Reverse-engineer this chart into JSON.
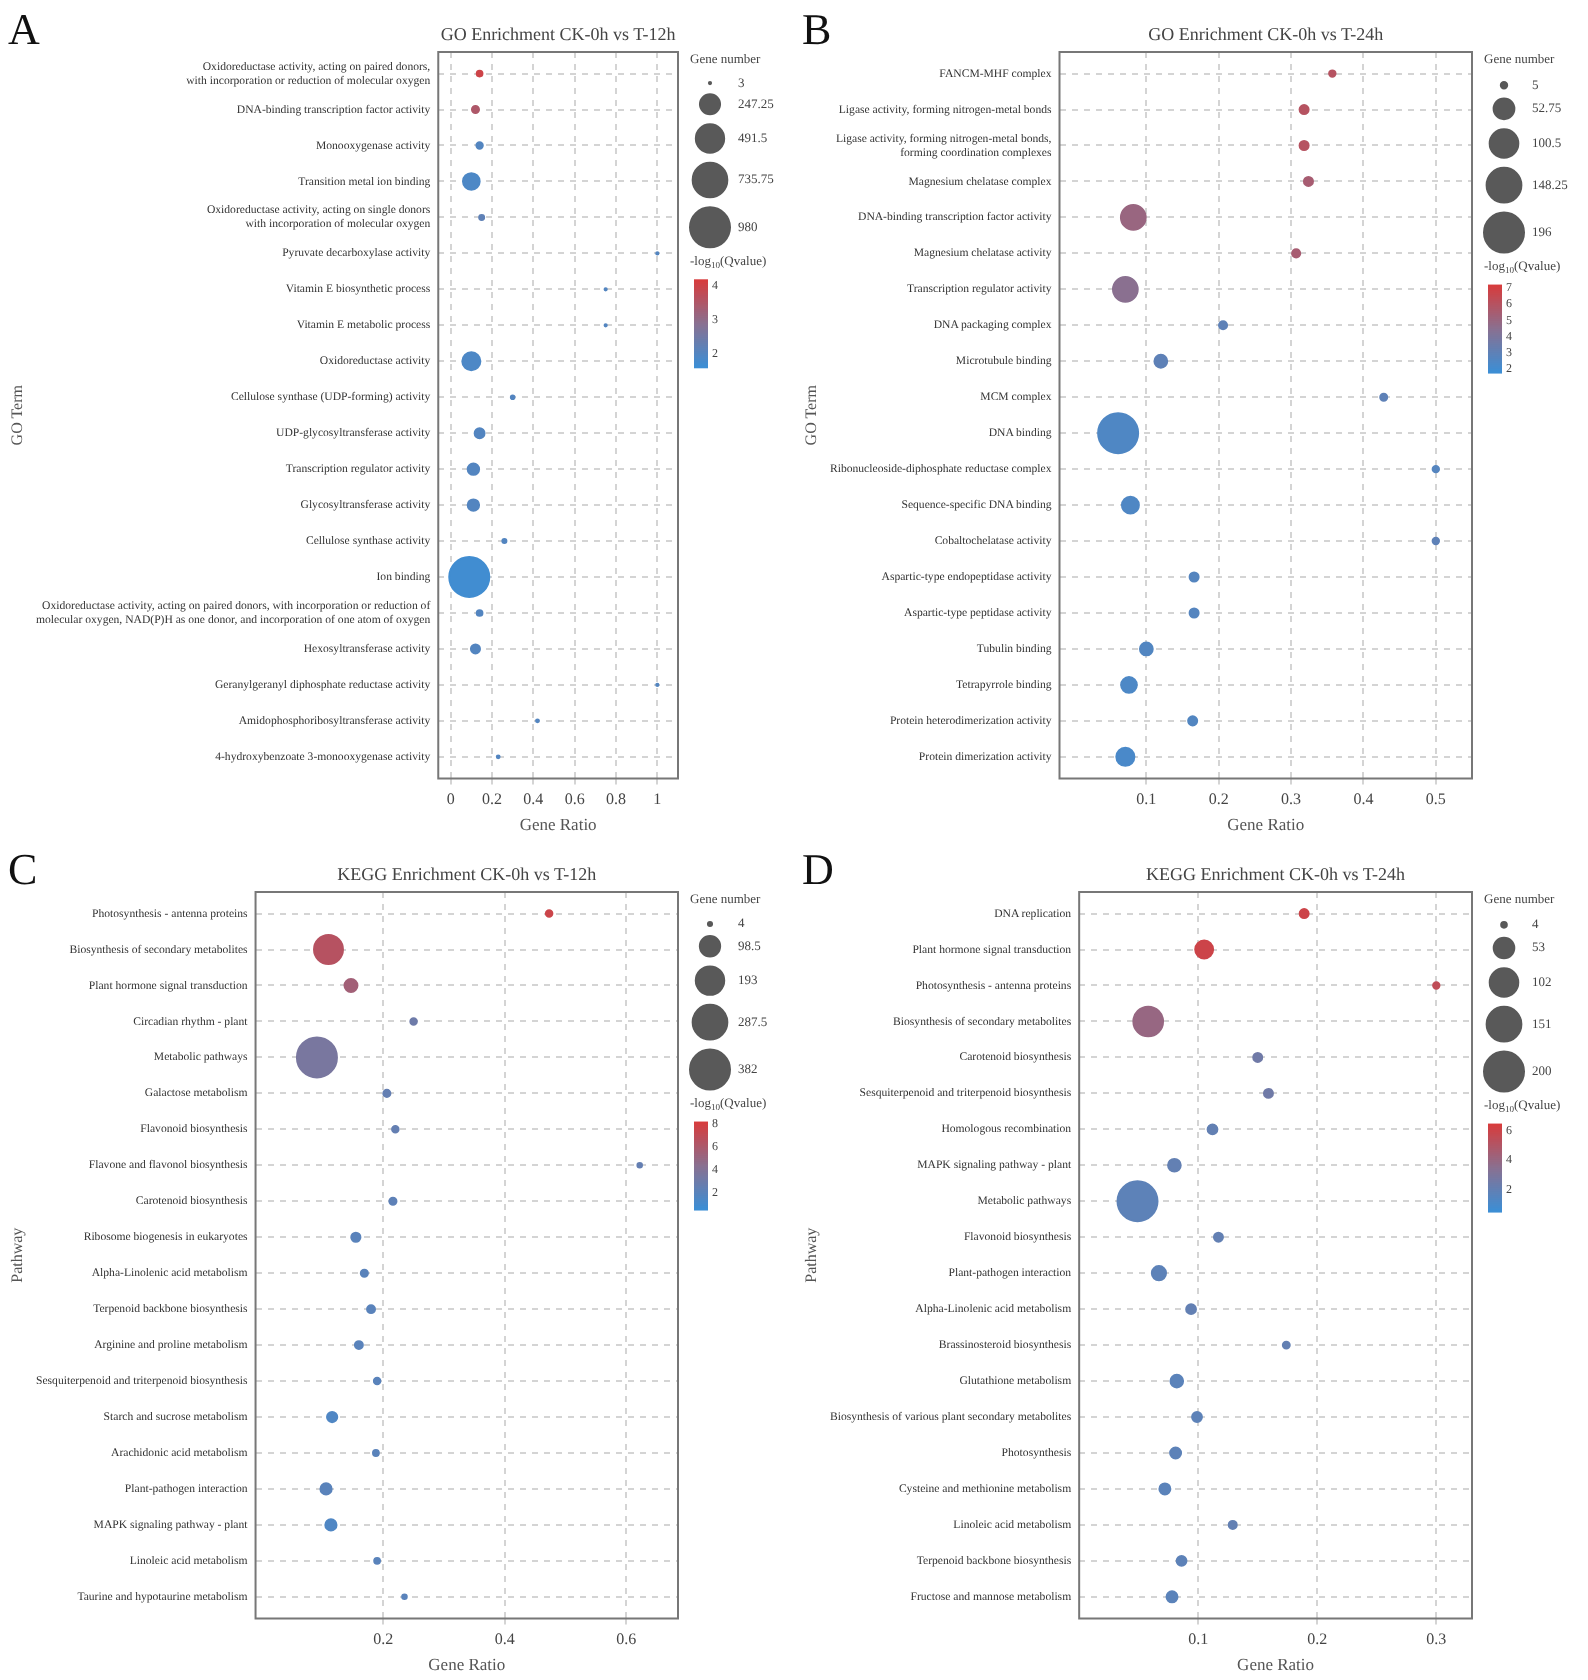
{
  "chart_data": [
    {
      "type": "bubble",
      "orientation": "horizontal",
      "title": "GO Enrichment CK-0h vs T-12h",
      "xlabel": "Gene Ratio",
      "ylabel": "GO Term",
      "annotations": [
        "A"
      ],
      "categories": [
        "Oxidoreductase activity, acting on paired donors,\nwith incorporation or reduction of molecular oxygen",
        "DNA-binding transcription factor activity",
        "Monooxygenase activity",
        "Transition metal ion binding",
        "Oxidoreductase activity, acting on single donors\nwith incorporation of molecular oxygen",
        "Pyruvate decarboxylase activity",
        "Vitamin E biosynthetic process",
        "Vitamin E metabolic process",
        "Oxidoreductase activity",
        "Cellulose synthase (UDP-forming) activity",
        "UDP-glycosyltransferase activity",
        "Transcription regulator activity",
        "Glycosyltransferase activity",
        "Cellulose synthase activity",
        "Ion binding",
        "Oxidoreductase activity, acting on paired donors, with incorporation or reduction of\nmolecular oxygen, NAD(P)H as one donor, and incorporation of one atom of oxygen",
        "Hexosyltransferase activity",
        "Geranylgeranyl diphosphate reductase activity",
        "Amidophosphoribosyltransferase activity",
        "4-hydroxybenzoate 3-monooxygenase activity"
      ],
      "values": [
        0.14,
        0.12,
        0.14,
        0.1,
        0.15,
        1,
        0.75,
        0.75,
        0.1,
        0.3,
        0.14,
        0.11,
        0.11,
        0.26,
        0.09,
        0.14,
        0.12,
        1,
        0.42,
        0.23
      ],
      "sizes": [
        20,
        30,
        25,
        170,
        15,
        3,
        3,
        3,
        200,
        8,
        60,
        80,
        80,
        10,
        980,
        20,
        50,
        3,
        5,
        5
      ],
      "cvalues": [
        4,
        3.5,
        2,
        1.9,
        2.2,
        2,
        2,
        2,
        1.9,
        2,
        2,
        2,
        2,
        2,
        1.7,
        2,
        2,
        2,
        2,
        2
      ],
      "size_legend": [
        3,
        247.25,
        491.5,
        735.75,
        980
      ],
      "legend_title": "Gene number",
      "clabel": "-log$_{10}$(Qvalue)",
      "clim": [
        1.6,
        4.2
      ],
      "cticks": [
        2,
        3,
        4
      ],
      "xlim": [
        -0.06,
        1.1
      ],
      "xticks": [
        0,
        0.2,
        0.4,
        0.6,
        0.8,
        1
      ],
      "grid": true,
      "marker": "circle"
    },
    {
      "type": "bubble",
      "orientation": "horizontal",
      "title": "GO Enrichment CK-0h vs T-24h",
      "xlabel": "Gene Ratio",
      "ylabel": "GO Term",
      "annotations": [
        "B"
      ],
      "categories": [
        "FANCM-MHF complex",
        "Ligase activity, forming nitrogen-metal bonds",
        "Ligase activity, forming nitrogen-metal bonds,\nforming coordination complexes",
        "Magnesium chelatase complex",
        "DNA-binding transcription factor activity",
        "Magnesium chelatase activity",
        "Transcription regulator activity",
        "DNA packaging complex",
        "Microtubule binding",
        "MCM complex",
        "DNA binding",
        "Ribonucleoside-diphosphate reductase complex",
        "Sequence-specific DNA binding",
        "Cobaltochelatase activity",
        "Aspartic-type endopeptidase activity",
        "Aspartic-type peptidase activity",
        "Tubulin binding",
        "Tetrapyrrole binding",
        "Protein heterodimerization activity",
        "Protein dimerization activity"
      ],
      "values": [
        0.357,
        0.318,
        0.318,
        0.324,
        0.082,
        0.307,
        0.071,
        0.206,
        0.12,
        0.428,
        0.061,
        0.5,
        0.078,
        0.5,
        0.166,
        0.166,
        0.1,
        0.076,
        0.164,
        0.071
      ],
      "sizes": [
        5,
        10,
        10,
        10,
        75,
        8,
        75,
        8,
        20,
        6,
        196,
        5,
        35,
        5,
        10,
        10,
        20,
        30,
        10,
        40
      ],
      "cvalues": [
        6,
        6,
        6,
        5.5,
        5,
        5.5,
        4.5,
        3,
        3,
        3,
        2.5,
        2.7,
        2.5,
        3,
        2.7,
        2.7,
        2.6,
        2.4,
        2.6,
        2.3
      ],
      "size_legend": [
        5,
        52.75,
        100.5,
        148.25,
        196
      ],
      "legend_title": "Gene number",
      "clabel": "-log$_{10}$(Qvalue)",
      "clim": [
        1.8,
        7.2
      ],
      "cticks": [
        2,
        3,
        4,
        5,
        6,
        7
      ],
      "xlim": [
        -0.02,
        0.55
      ],
      "xticks": [
        0.1,
        0.2,
        0.3,
        0.4,
        0.5
      ],
      "grid": true,
      "marker": "circle"
    },
    {
      "type": "bubble",
      "orientation": "horizontal",
      "title": "KEGG Enrichment CK-0h vs T-12h",
      "xlabel": "Gene Ratio",
      "ylabel": "Pathway",
      "annotations": [
        "C"
      ],
      "categories": [
        "Photosynthesis - antenna proteins",
        "Biosynthesis of secondary metabolites",
        "Plant hormone signal transduction",
        "Circadian rhythm - plant",
        "Metabolic pathways",
        "Galactose metabolism",
        "Flavonoid biosynthesis",
        "Flavone and flavonol biosynthesis",
        "Carotenoid biosynthesis",
        "Ribosome biogenesis in eukaryotes",
        "Alpha-Linolenic acid metabolism",
        "Terpenoid backbone biosynthesis",
        "Arginine and proline metabolism",
        "Sesquiterpenoid and triterpenoid biosynthesis",
        "Starch and sucrose metabolism",
        "Arachidonic acid metabolism",
        "Plant-pathogen interaction",
        "MAPK signaling pathway - plant",
        "Linoleic acid metabolism",
        "Taurine and hypotaurine metabolism"
      ],
      "values": [
        0.473,
        0.11,
        0.147,
        0.25,
        0.091,
        0.206,
        0.22,
        0.622,
        0.216,
        0.155,
        0.169,
        0.18,
        0.16,
        0.19,
        0.116,
        0.188,
        0.106,
        0.114,
        0.19,
        0.235
      ],
      "sizes": [
        10,
        200,
        40,
        10,
        382,
        12,
        10,
        5,
        12,
        20,
        12,
        15,
        15,
        10,
        25,
        8,
        30,
        30,
        8,
        5
      ],
      "cvalues": [
        7.5,
        6.5,
        5.5,
        3,
        3.5,
        2.5,
        2.5,
        2.5,
        2.2,
        2,
        2,
        2,
        2,
        2,
        1.5,
        2,
        2,
        1.5,
        2,
        2
      ],
      "size_legend": [
        4,
        98.5,
        193,
        287.5,
        382
      ],
      "legend_title": "Gene number",
      "clabel": "-log$_{10}$(Qvalue)",
      "clim": [
        0.5,
        8.2
      ],
      "cticks": [
        2,
        4,
        6,
        8
      ],
      "xlim": [
        -0.01,
        0.685
      ],
      "xticks": [
        0.2,
        0.4,
        0.6
      ],
      "grid": true,
      "marker": "circle"
    },
    {
      "type": "bubble",
      "orientation": "horizontal",
      "title": "KEGG Enrichment CK-0h vs T-24h",
      "xlabel": "Gene Ratio",
      "ylabel": "Pathway",
      "annotations": [
        "D"
      ],
      "categories": [
        "DNA replication",
        "Plant hormone signal transduction",
        "Photosynthesis - antenna proteins",
        "Biosynthesis of secondary metabolites",
        "Carotenoid biosynthesis",
        "Sesquiterpenoid and triterpenoid biosynthesis",
        "Homologous recombination",
        "MAPK signaling pathway - plant",
        "Metabolic pathways",
        "Flavonoid biosynthesis",
        "Plant-pathogen interaction",
        "Alpha-Linolenic acid metabolism",
        "Brassinosteroid biosynthesis",
        "Glutathione metabolism",
        "Biosynthesis of various plant secondary metabolites",
        "Photosynthesis",
        "Cysteine and methionine metabolism",
        "Linoleic acid metabolism",
        "Terpenoid backbone biosynthesis",
        "Fructose and mannose metabolism"
      ],
      "values": [
        0.189,
        0.105,
        0.3,
        0.058,
        0.15,
        0.159,
        0.112,
        0.08,
        0.049,
        0.117,
        0.067,
        0.094,
        0.174,
        0.082,
        0.099,
        0.081,
        0.072,
        0.129,
        0.086,
        0.078
      ],
      "sizes": [
        10,
        40,
        5,
        110,
        10,
        10,
        12,
        20,
        200,
        10,
        25,
        12,
        6,
        20,
        12,
        15,
        15,
        8,
        12,
        15
      ],
      "cvalues": [
        6,
        6,
        5.5,
        4,
        2.5,
        2.5,
        2,
        2,
        1.8,
        2,
        1.8,
        2,
        2,
        1.7,
        1.8,
        1.8,
        1.7,
        2,
        1.8,
        1.7
      ],
      "size_legend": [
        4,
        53,
        102,
        151,
        200
      ],
      "legend_title": "Gene number",
      "clabel": "-log$_{10}$(Qvalue)",
      "clim": [
        0.5,
        6.5
      ],
      "cticks": [
        2,
        4,
        6
      ],
      "xlim": [
        0,
        0.33
      ],
      "xticks": [
        0.1,
        0.2,
        0.3
      ],
      "grid": true,
      "marker": "circle"
    }
  ]
}
